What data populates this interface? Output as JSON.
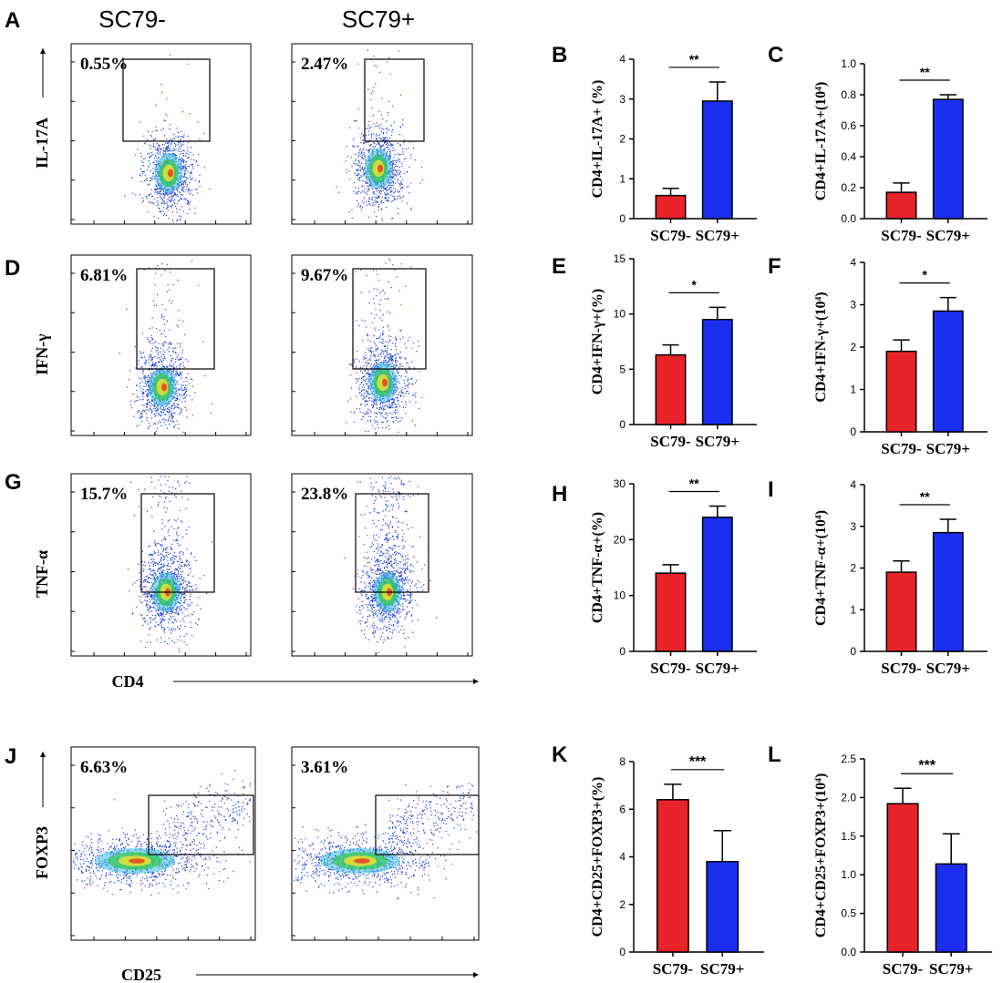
{
  "figure": {
    "column_headers": [
      "SC79-",
      "SC79+"
    ],
    "colors": {
      "negative": "#e8232a",
      "positive": "#1a2ef0",
      "axis": "#000000",
      "gate": "#000000"
    }
  },
  "chart_data": [
    {
      "panel": "A",
      "type": "scatter",
      "subtype": "flow-cytometry-density",
      "xlabel": "",
      "ylabel": "IL-17A",
      "samples": [
        {
          "name": "SC79-",
          "gate_percent_label": "0.55%",
          "gate_percent": 0.55
        },
        {
          "name": "SC79+",
          "gate_percent_label": "2.47%",
          "gate_percent": 2.47
        }
      ]
    },
    {
      "panel": "B",
      "type": "bar",
      "categories": [
        "SC79-",
        "SC79+"
      ],
      "values": [
        0.58,
        2.95
      ],
      "errors": [
        0.18,
        0.48
      ],
      "ylabel": "CD4+IL-17A+ (%)",
      "ylim": [
        0,
        4
      ],
      "yticks": [
        0,
        1,
        2,
        3,
        4
      ],
      "tick_labels": [
        "0",
        "1",
        "2",
        "3",
        "4"
      ],
      "significance": "**"
    },
    {
      "panel": "C",
      "type": "bar",
      "categories": [
        "SC79-",
        "SC79+"
      ],
      "values": [
        0.17,
        0.77
      ],
      "errors": [
        0.06,
        0.03
      ],
      "ylabel": "CD4+IL-17A+(10⁴)",
      "ylim": [
        0,
        1.0
      ],
      "yticks": [
        0,
        0.2,
        0.4,
        0.6,
        0.8,
        1.0
      ],
      "tick_labels": [
        "0.0",
        "0.2",
        "0.4",
        "0.6",
        "0.8",
        "1.0"
      ],
      "significance": "**"
    },
    {
      "panel": "D",
      "type": "scatter",
      "subtype": "flow-cytometry-density",
      "xlabel": "",
      "ylabel": "IFN-γ",
      "samples": [
        {
          "name": "SC79-",
          "gate_percent_label": "6.81%",
          "gate_percent": 6.81
        },
        {
          "name": "SC79+",
          "gate_percent_label": "9.67%",
          "gate_percent": 9.67
        }
      ]
    },
    {
      "panel": "E",
      "type": "bar",
      "categories": [
        "SC79-",
        "SC79+"
      ],
      "values": [
        6.3,
        9.5
      ],
      "errors": [
        0.9,
        1.1
      ],
      "ylabel": "CD4+IFN-γ+(%)",
      "ylim": [
        0,
        15
      ],
      "yticks": [
        0,
        5,
        10,
        15
      ],
      "tick_labels": [
        "0",
        "5",
        "10",
        "15"
      ],
      "significance": "*"
    },
    {
      "panel": "F",
      "type": "bar",
      "categories": [
        "SC79-",
        "SC79+"
      ],
      "values": [
        1.9,
        2.85
      ],
      "errors": [
        0.27,
        0.32
      ],
      "ylabel": "CD4+IFN-γ+(10⁴)",
      "ylim": [
        0,
        4
      ],
      "yticks": [
        0,
        1,
        2,
        3,
        4
      ],
      "tick_labels": [
        "0",
        "1",
        "2",
        "3",
        "4"
      ],
      "significance": "*"
    },
    {
      "panel": "G",
      "type": "scatter",
      "subtype": "flow-cytometry-density",
      "xlabel": "CD4",
      "ylabel": "TNF-α",
      "samples": [
        {
          "name": "SC79-",
          "gate_percent_label": "15.7%",
          "gate_percent": 15.7
        },
        {
          "name": "SC79+",
          "gate_percent_label": "23.8%",
          "gate_percent": 23.8
        }
      ]
    },
    {
      "panel": "H",
      "type": "bar",
      "categories": [
        "SC79-",
        "SC79+"
      ],
      "values": [
        14.0,
        24.0
      ],
      "errors": [
        1.5,
        2.0
      ],
      "ylabel": "CD4+TNF-α+(%)",
      "ylim": [
        0,
        30
      ],
      "yticks": [
        0,
        10,
        20,
        30
      ],
      "tick_labels": [
        "0",
        "10",
        "20",
        "30"
      ],
      "significance": "**"
    },
    {
      "panel": "I",
      "type": "bar",
      "categories": [
        "SC79-",
        "SC79+"
      ],
      "values": [
        1.9,
        2.85
      ],
      "errors": [
        0.27,
        0.32
      ],
      "ylabel": "CD4+TNF-α+(10⁴)",
      "ylim": [
        0,
        4
      ],
      "yticks": [
        0,
        1,
        2,
        3,
        4
      ],
      "tick_labels": [
        "0",
        "1",
        "2",
        "3",
        "4"
      ],
      "significance": "**"
    },
    {
      "panel": "J",
      "type": "scatter",
      "subtype": "flow-cytometry-density",
      "xlabel": "CD25",
      "ylabel": "FOXP3",
      "samples": [
        {
          "name": "SC79-",
          "gate_percent_label": "6.63%",
          "gate_percent": 6.63
        },
        {
          "name": "SC79+",
          "gate_percent_label": "3.61%",
          "gate_percent": 3.61
        }
      ]
    },
    {
      "panel": "K",
      "type": "bar",
      "categories": [
        "SC79-",
        "SC79+"
      ],
      "values": [
        6.4,
        3.8
      ],
      "errors": [
        0.65,
        1.3
      ],
      "ylabel": "CD4+CD25+FOXP3+(%)",
      "ylim": [
        0,
        8
      ],
      "yticks": [
        0,
        2,
        4,
        6,
        8
      ],
      "tick_labels": [
        "0",
        "2",
        "4",
        "6",
        "8"
      ],
      "significance": "***"
    },
    {
      "panel": "L",
      "type": "bar",
      "categories": [
        "SC79-",
        "SC79+"
      ],
      "values": [
        1.92,
        1.14
      ],
      "errors": [
        0.2,
        0.39
      ],
      "ylabel": "CD4+CD25+FOXP3+(10⁴)",
      "ylim": [
        0,
        2.5
      ],
      "yticks": [
        0,
        0.5,
        1.0,
        1.5,
        2.0,
        2.5
      ],
      "tick_labels": [
        "0.0",
        "0.5",
        "1.0",
        "1.5",
        "2.0",
        "2.5"
      ],
      "significance": "***"
    }
  ]
}
